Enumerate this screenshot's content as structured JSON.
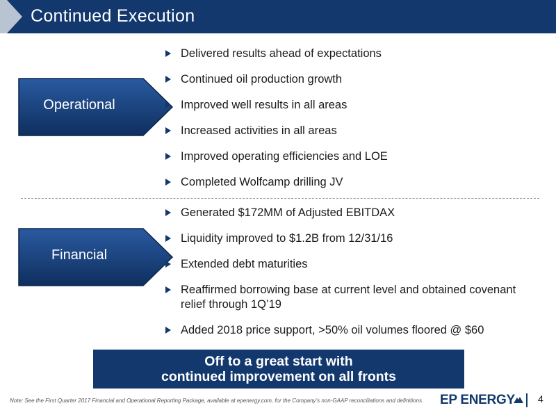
{
  "header": {
    "title": "Continued Execution",
    "bg_color": "#12386e"
  },
  "sections": [
    {
      "label": "Operational",
      "bullets": [
        "Delivered results ahead of expectations",
        "Continued oil production growth",
        "Improved well results in all areas",
        "Increased activities in all areas",
        "Improved operating efficiencies and LOE",
        "Completed Wolfcamp drilling JV"
      ]
    },
    {
      "label": "Financial",
      "bullets": [
        "Generated $172MM of Adjusted EBITDAX",
        "Liquidity improved to $1.2B from 12/31/16",
        "Extended debt maturities",
        "Reaffirmed borrowing base at current level and obtained covenant relief through 1Q’19",
        "Added 2018 price support, >50% oil volumes floored @ $60"
      ]
    }
  ],
  "banner": {
    "line1": "Off to a great start with",
    "line2": "continued improvement on all fronts"
  },
  "footer": {
    "note": "Note: See the First Quarter 2017 Financial and Operational Reporting Package, available at epenergy.com, for the Company’s non-GAAP reconciliations and definitions.",
    "logo_text": "EP ENERGY",
    "page_number": "4"
  }
}
